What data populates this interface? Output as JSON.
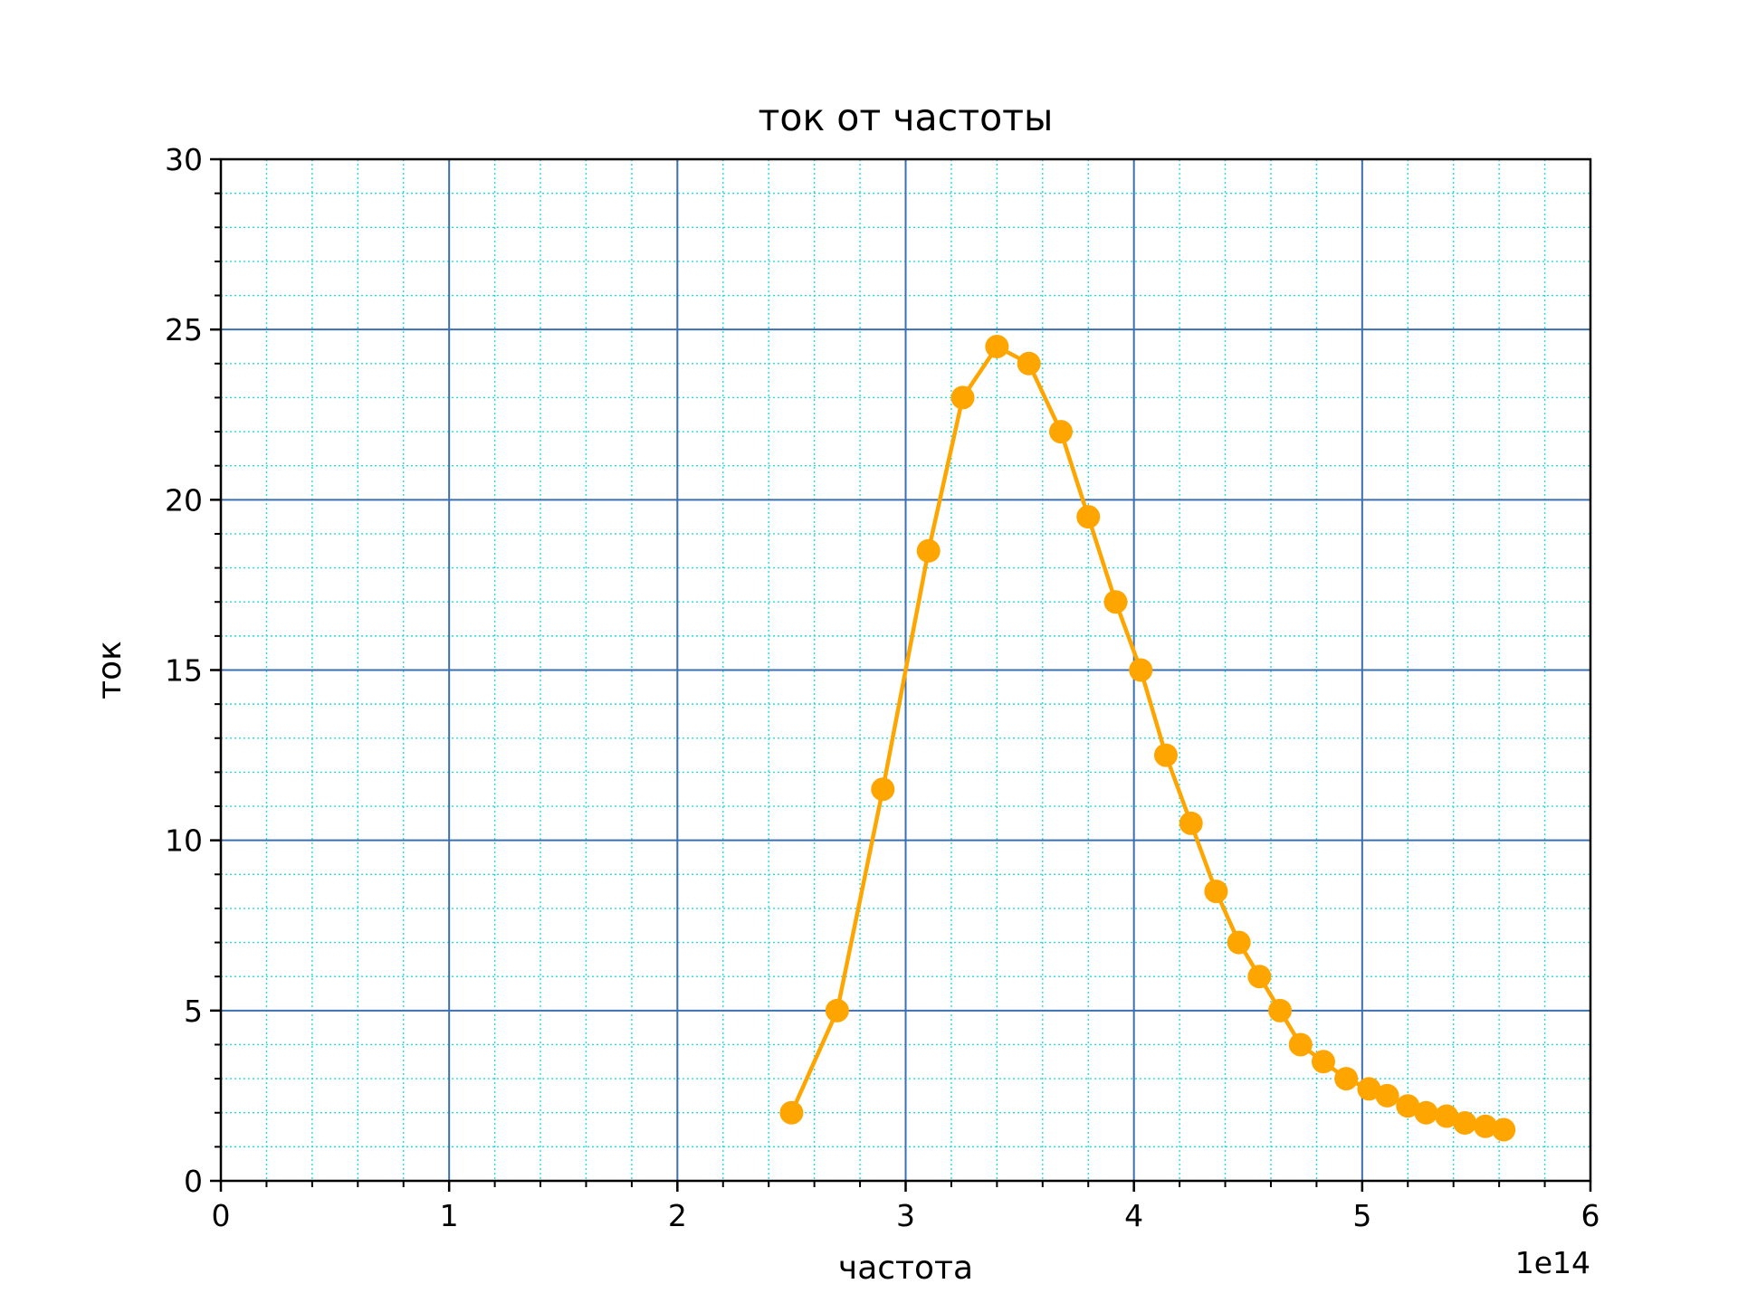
{
  "chart_data": {
    "type": "line",
    "title": "ток от частоты",
    "xlabel": "частота",
    "ylabel": "ток",
    "x_offset_label": "1e14",
    "xlim": [
      0,
      600000000000000
    ],
    "ylim": [
      0,
      30
    ],
    "x_tick_labels": [
      "0",
      "1",
      "2",
      "3",
      "4",
      "5",
      "6"
    ],
    "y_tick_labels": [
      "0",
      "5",
      "10",
      "15",
      "20",
      "25",
      "30"
    ],
    "grid": true,
    "legend": "none",
    "colors": {
      "series": "#ffa500",
      "major_grid": "#3b6fb0",
      "minor_grid": "#22dddd",
      "axes": "#000000"
    },
    "series": [
      {
        "marker": "circle",
        "x": [
          250000000000000,
          270000000000000,
          290000000000000,
          310000000000000,
          325000000000000,
          340000000000000,
          354000000000000,
          368000000000000,
          380000000000000,
          392000000000000,
          403000000000000,
          414000000000000,
          425000000000000,
          436000000000000,
          446000000000000,
          455000000000000,
          464000000000000,
          473000000000000,
          483000000000000,
          493000000000000,
          503000000000000,
          511000000000000,
          520000000000000,
          528000000000000,
          537000000000000,
          545000000000000,
          554000000000000,
          562000000000000
        ],
        "y": [
          2.0,
          5.0,
          11.5,
          18.5,
          23.0,
          24.5,
          24.0,
          22.0,
          19.5,
          17.0,
          15.0,
          12.5,
          10.5,
          8.5,
          7.0,
          6.0,
          5.0,
          4.0,
          3.5,
          3.0,
          2.7,
          2.5,
          2.2,
          2.0,
          1.9,
          1.7,
          1.6,
          1.5
        ]
      }
    ]
  }
}
